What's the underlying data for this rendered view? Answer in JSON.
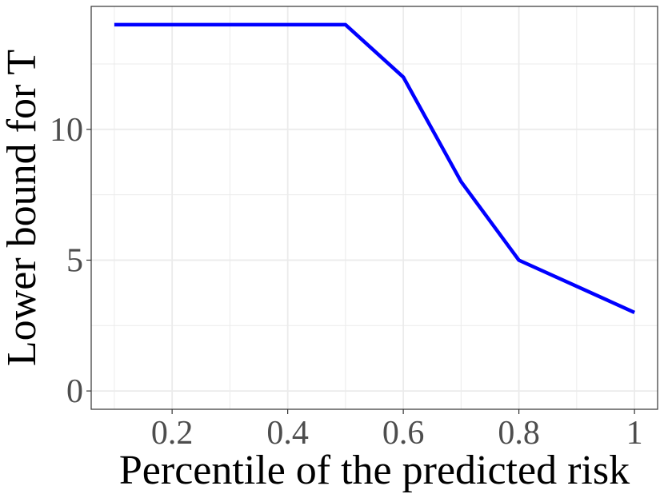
{
  "chart_data": {
    "type": "line",
    "title": "",
    "xlabel": "Percentile of the predicted risk",
    "ylabel": "Lower bound for T",
    "x": [
      0.1,
      0.2,
      0.3,
      0.4,
      0.5,
      0.6,
      0.7,
      0.8,
      0.9,
      1.0
    ],
    "series": [
      {
        "values": [
          14,
          14,
          14,
          14,
          14,
          12,
          8,
          5,
          4,
          3
        ],
        "color": "#0000ff"
      }
    ],
    "xlim": [
      0.06,
      1.04
    ],
    "ylim": [
      -0.7,
      14.7
    ],
    "x_ticks": [
      0.2,
      0.4,
      0.6,
      0.8,
      1
    ],
    "x_tick_labels": [
      "0.2",
      "0.4",
      "0.6",
      "0.8",
      "1"
    ],
    "y_ticks": [
      0,
      5,
      10
    ],
    "y_tick_labels": [
      "0",
      "5",
      "10"
    ],
    "grid": true,
    "legend": "none",
    "colors": {
      "line": "#0000ff",
      "grid": "#ebebeb",
      "panel_border": "#333333",
      "tick_label": "#4d4d4d"
    }
  }
}
